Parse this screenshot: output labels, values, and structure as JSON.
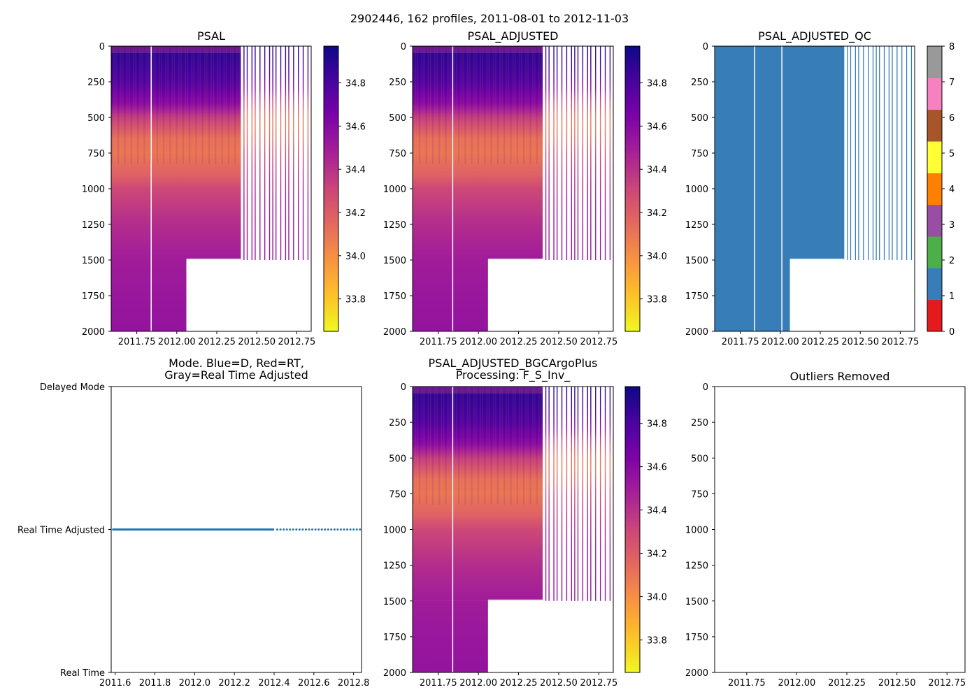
{
  "figure": {
    "suptitle": "2902446, 162 profiles, 2011-08-01 to 2012-11-03"
  },
  "chart_data": [
    {
      "id": "psal",
      "type": "heatmap",
      "title": "PSAL",
      "xlabel": "",
      "ylabel": "",
      "xlim": [
        2011.59,
        2012.84
      ],
      "ylim": [
        2000,
        0
      ],
      "xticks": [
        2011.75,
        2012.0,
        2012.25,
        2012.5,
        2012.75
      ],
      "xtick_labels": [
        "2011.75",
        "2012.00",
        "2012.25",
        "2012.50",
        "2012.75"
      ],
      "yticks": [
        0,
        250,
        500,
        750,
        1000,
        1250,
        1500,
        1750,
        2000
      ],
      "ytick_labels": [
        "0",
        "250",
        "500",
        "750",
        "1000",
        "1250",
        "1500",
        "1750",
        "2000"
      ],
      "colormap": "plasma_r",
      "colorbar": {
        "min": 33.65,
        "max": 34.97,
        "ticks": [
          33.8,
          34.0,
          34.2,
          34.4,
          34.6,
          34.8
        ],
        "tick_labels": [
          "33.8",
          "34.0",
          "34.2",
          "34.4",
          "34.6",
          "34.8"
        ]
      },
      "depth_profile": {
        "depth": [
          0,
          100,
          250,
          400,
          500,
          650,
          750,
          900,
          1000,
          1250,
          1500,
          1750,
          2000
        ],
        "value": [
          34.88,
          34.86,
          34.78,
          34.6,
          34.35,
          34.12,
          34.1,
          34.18,
          34.3,
          34.42,
          34.5,
          34.53,
          34.55
        ]
      },
      "continuous_until": 2012.4,
      "deep_coverage_until": 2012.06,
      "shallow_max_depth": 1500,
      "gap_times": [
        2011.84
      ],
      "sparse_profiles": [
        2012.42,
        2012.44,
        2012.47,
        2012.49,
        2012.52,
        2012.55,
        2012.58,
        2012.6,
        2012.62,
        2012.65,
        2012.68,
        2012.7,
        2012.73,
        2012.76,
        2012.79,
        2012.82
      ]
    },
    {
      "id": "psal_adjusted",
      "type": "heatmap",
      "title": "PSAL_ADJUSTED",
      "xlabel": "",
      "ylabel": "",
      "xlim": [
        2011.59,
        2012.84
      ],
      "ylim": [
        2000,
        0
      ],
      "xticks": [
        2011.75,
        2012.0,
        2012.25,
        2012.5,
        2012.75
      ],
      "xtick_labels": [
        "2011.75",
        "2012.00",
        "2012.25",
        "2012.50",
        "2012.75"
      ],
      "yticks": [
        0,
        250,
        500,
        750,
        1000,
        1250,
        1500,
        1750,
        2000
      ],
      "ytick_labels": [
        "0",
        "250",
        "500",
        "750",
        "1000",
        "1250",
        "1500",
        "1750",
        "2000"
      ],
      "colormap": "plasma_r",
      "colorbar": {
        "min": 33.65,
        "max": 34.97,
        "ticks": [
          33.8,
          34.0,
          34.2,
          34.4,
          34.6,
          34.8
        ],
        "tick_labels": [
          "33.8",
          "34.0",
          "34.2",
          "34.4",
          "34.6",
          "34.8"
        ]
      },
      "depth_profile": {
        "depth": [
          0,
          100,
          250,
          400,
          500,
          650,
          750,
          900,
          1000,
          1250,
          1500,
          1750,
          2000
        ],
        "value": [
          34.88,
          34.86,
          34.78,
          34.6,
          34.35,
          34.12,
          34.1,
          34.18,
          34.3,
          34.42,
          34.5,
          34.53,
          34.55
        ]
      },
      "continuous_until": 2012.4,
      "deep_coverage_until": 2012.06,
      "shallow_max_depth": 1500,
      "gap_times": [
        2011.84
      ],
      "sparse_profiles": [
        2012.42,
        2012.44,
        2012.47,
        2012.49,
        2012.52,
        2012.55,
        2012.58,
        2012.6,
        2012.62,
        2012.65,
        2012.68,
        2012.7,
        2012.73,
        2012.76,
        2012.79,
        2012.82
      ]
    },
    {
      "id": "psal_adjusted_qc",
      "type": "heatmap",
      "title": "PSAL_ADJUSTED_QC",
      "xlabel": "",
      "ylabel": "",
      "xlim": [
        2011.59,
        2012.84
      ],
      "ylim": [
        2000,
        0
      ],
      "xticks": [
        2011.75,
        2012.0,
        2012.25,
        2012.5,
        2012.75
      ],
      "xtick_labels": [
        "2011.75",
        "2012.00",
        "2012.25",
        "2012.50",
        "2012.75"
      ],
      "yticks": [
        0,
        250,
        500,
        750,
        1000,
        1250,
        1500,
        1750,
        2000
      ],
      "ytick_labels": [
        "0",
        "250",
        "500",
        "750",
        "1000",
        "1250",
        "1500",
        "1750",
        "2000"
      ],
      "qc_value": 1,
      "qc_fill_color": "#377eb8",
      "colorbar": {
        "min": 0,
        "max": 8,
        "colors": [
          "#e41a1c",
          "#377eb8",
          "#4daf4a",
          "#984ea3",
          "#ff7f00",
          "#ffff33",
          "#a65628",
          "#f781bf",
          "#999999"
        ],
        "ticks": [
          0,
          1,
          2,
          3,
          4,
          5,
          6,
          7,
          8
        ],
        "tick_labels": [
          "0",
          "1",
          "2",
          "3",
          "4",
          "5",
          "6",
          "7",
          "8"
        ]
      },
      "continuous_until": 2012.4,
      "deep_coverage_until": 2012.06,
      "shallow_max_depth": 1500,
      "gap_times": [
        2011.84,
        2012.01
      ],
      "sparse_profiles": [
        2012.42,
        2012.44,
        2012.47,
        2012.49,
        2012.52,
        2012.55,
        2012.58,
        2012.6,
        2012.62,
        2012.65,
        2012.68,
        2012.7,
        2012.73,
        2012.76,
        2012.79,
        2012.82
      ]
    },
    {
      "id": "mode",
      "type": "scatter",
      "title_lines": [
        "Mode. Blue=D, Red=RT,",
        "Gray=Real Time Adjusted"
      ],
      "xlabel": "",
      "ylabel": "",
      "xlim": [
        2011.58,
        2012.84
      ],
      "ylim": [
        0,
        2
      ],
      "xticks": [
        2011.6,
        2011.8,
        2012.0,
        2012.2,
        2012.4,
        2012.6,
        2012.8
      ],
      "xtick_labels": [
        "2011.6",
        "2011.8",
        "2012.0",
        "2012.2",
        "2012.4",
        "2012.6",
        "2012.8"
      ],
      "yticks": [
        2,
        1,
        0
      ],
      "ytick_labels": [
        "Delayed Mode",
        "Real Time Adjusted",
        "Real Time"
      ],
      "point_color": "#1f77b4",
      "series": [
        {
          "name": "Real Time Adjusted",
          "y": 1,
          "dense_from": 2011.585,
          "dense_to": 2012.4,
          "sparse_from": 2012.4,
          "sparse_to": 2012.84,
          "sparse_step": 0.016
        }
      ]
    },
    {
      "id": "psal_bgc",
      "type": "heatmap",
      "title_lines": [
        "PSAL_ADJUSTED_BGCArgoPlus",
        "Processing: F_S_Inv_"
      ],
      "xlabel": "",
      "ylabel": "",
      "xlim": [
        2011.59,
        2012.84
      ],
      "ylim": [
        2000,
        0
      ],
      "xticks": [
        2011.75,
        2012.0,
        2012.25,
        2012.5,
        2012.75
      ],
      "xtick_labels": [
        "2011.75",
        "2012.00",
        "2012.25",
        "2012.50",
        "2012.75"
      ],
      "yticks": [
        0,
        250,
        500,
        750,
        1000,
        1250,
        1500,
        1750,
        2000
      ],
      "ytick_labels": [
        "0",
        "250",
        "500",
        "750",
        "1000",
        "1250",
        "1500",
        "1750",
        "2000"
      ],
      "colormap": "plasma_r",
      "colorbar": {
        "min": 33.65,
        "max": 34.97,
        "ticks": [
          33.8,
          34.0,
          34.2,
          34.4,
          34.6,
          34.8
        ],
        "tick_labels": [
          "33.8",
          "34.0",
          "34.2",
          "34.4",
          "34.6",
          "34.8"
        ]
      },
      "depth_profile": {
        "depth": [
          0,
          100,
          250,
          400,
          500,
          650,
          750,
          900,
          1000,
          1250,
          1500,
          1750,
          2000
        ],
        "value": [
          34.88,
          34.86,
          34.78,
          34.6,
          34.35,
          34.12,
          34.1,
          34.18,
          34.3,
          34.42,
          34.5,
          34.53,
          34.55
        ]
      },
      "continuous_until": 2012.4,
      "deep_coverage_until": 2012.06,
      "shallow_max_depth": 1500,
      "gap_times": [
        2011.84
      ],
      "sparse_profiles": [
        2012.42,
        2012.44,
        2012.47,
        2012.49,
        2012.52,
        2012.55,
        2012.58,
        2012.6,
        2012.62,
        2012.65,
        2012.68,
        2012.7,
        2012.73,
        2012.76,
        2012.79,
        2012.82
      ]
    },
    {
      "id": "outliers",
      "type": "scatter",
      "title": "Outliers Removed",
      "xlabel": "",
      "ylabel": "",
      "xlim": [
        2011.59,
        2012.84
      ],
      "ylim": [
        2000,
        0
      ],
      "xticks": [
        2011.75,
        2012.0,
        2012.25,
        2012.5,
        2012.75
      ],
      "xtick_labels": [
        "2011.75",
        "2012.00",
        "2012.25",
        "2012.50",
        "2012.75"
      ],
      "yticks": [
        0,
        250,
        500,
        750,
        1000,
        1250,
        1500,
        1750,
        2000
      ],
      "ytick_labels": [
        "0",
        "250",
        "500",
        "750",
        "1000",
        "1250",
        "1500",
        "1750",
        "2000"
      ],
      "points": []
    }
  ]
}
